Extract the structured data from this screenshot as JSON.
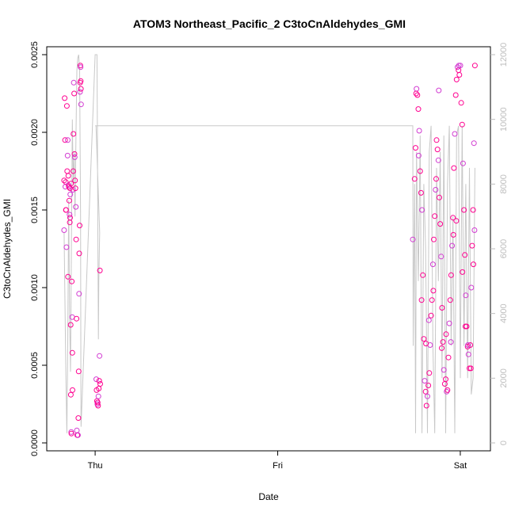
{
  "chart_data": {
    "type": "scatter",
    "title": "ATOM3 Northeast_Pacific_2 C3toCnAldehydes_GMI",
    "xlabel": "Date",
    "ylabel": "C3toCnAldehydes_GMI",
    "x_ticks": [
      {
        "label": "Thu",
        "pos": 0
      },
      {
        "label": "Fri",
        "pos": 1
      },
      {
        "label": "Sat",
        "pos": 2
      }
    ],
    "xlim": [
      -0.2,
      2.1
    ],
    "ylim": [
      0,
      0.0025
    ],
    "y_ticks": [
      {
        "label": "0.0000",
        "value": 0
      },
      {
        "label": "0.0005",
        "value": 0.0005
      },
      {
        "label": "0.0010",
        "value": 0.001
      },
      {
        "label": "0.0015",
        "value": 0.0015
      },
      {
        "label": "0.0020",
        "value": 0.002
      },
      {
        "label": "0.0025",
        "value": 0.0025
      }
    ],
    "y2lim": [
      0,
      12000
    ],
    "y2_ticks": [
      {
        "label": "0",
        "value": 0
      },
      {
        "label": "2000",
        "value": 2000
      },
      {
        "label": "4000",
        "value": 4000
      },
      {
        "label": "6000",
        "value": 6000
      },
      {
        "label": "8000",
        "value": 8000
      },
      {
        "label": "10000",
        "value": 10000
      },
      {
        "label": "12000",
        "value": 12000
      }
    ],
    "colors": {
      "points": "#ff0090",
      "points_alt": "#d23cd2",
      "altitude_line": "#c8c8c8",
      "right_axis": "#bdbdbd"
    },
    "grid": false,
    "series": [
      {
        "values": [
          [
            -0.17,
            0.00137
          ],
          [
            -0.167,
            0.00222
          ],
          [
            -0.165,
            0.00195
          ],
          [
            -0.163,
            0.00165
          ],
          [
            -0.161,
            0.00168
          ],
          [
            -0.159,
            0.0015
          ],
          [
            -0.157,
            0.00126
          ],
          [
            -0.155,
            0.00217
          ],
          [
            -0.153,
            0.00175
          ],
          [
            -0.151,
            0.00185
          ],
          [
            -0.149,
            0.00107
          ],
          [
            -0.147,
            0.00172
          ],
          [
            -0.146,
            0.00166
          ],
          [
            -0.144,
            0.00165
          ],
          [
            -0.142,
            0.00156
          ],
          [
            -0.14,
            0.00147
          ],
          [
            -0.139,
            0.00142
          ],
          [
            -0.137,
            0.00145
          ],
          [
            -0.136,
            0.0016
          ],
          [
            -0.134,
            0.00076
          ],
          [
            -0.133,
            0.00031
          ],
          [
            -0.131,
            7e-05
          ],
          [
            -0.13,
            6e-05
          ],
          [
            -0.128,
            0.00104
          ],
          [
            -0.126,
            0.00081
          ],
          [
            -0.125,
            0.00058
          ],
          [
            -0.124,
            0.00034
          ],
          [
            -0.122,
            0.00163
          ],
          [
            -0.12,
            0.00175
          ],
          [
            -0.119,
            0.00199
          ],
          [
            -0.117,
            0.00232
          ],
          [
            -0.115,
            0.00225
          ],
          [
            -0.113,
            0.00186
          ],
          [
            -0.112,
            0.00184
          ],
          [
            -0.11,
            0.00169
          ],
          [
            -0.108,
            0.00164
          ],
          [
            -0.106,
            0.00152
          ],
          [
            -0.104,
            0.00131
          ],
          [
            -0.102,
            0.0008
          ],
          [
            -0.1,
            8e-05
          ],
          [
            -0.098,
            5e-05
          ],
          [
            -0.096,
            5e-05
          ],
          [
            -0.094,
            5e-05
          ],
          [
            -0.092,
            0.00016
          ],
          [
            -0.09,
            0.00046
          ],
          [
            -0.088,
            0.00096
          ],
          [
            -0.087,
            0.00122
          ],
          [
            -0.085,
            0.0014
          ],
          [
            -0.083,
            0.00226
          ],
          [
            -0.082,
            0.00232
          ],
          [
            -0.081,
            0.00243
          ],
          [
            -0.08,
            0.00242
          ],
          [
            -0.079,
            0.00233
          ],
          [
            -0.078,
            0.00228
          ],
          [
            -0.077,
            0.00218
          ],
          [
            -0.17,
            0.00169
          ],
          [
            -0.16,
            0.0015
          ],
          [
            -0.15,
            0.00195
          ],
          [
            -0.138,
            0.00164
          ],
          [
            -0.132,
            0.00167
          ],
          [
            0.006,
            0.00041
          ],
          [
            0.008,
            0.00034
          ],
          [
            0.01,
            0.00027
          ],
          [
            0.012,
            0.00025
          ],
          [
            0.014,
            0.00026
          ],
          [
            0.016,
            0.00024
          ],
          [
            0.018,
            0.0003
          ],
          [
            0.02,
            0.00035
          ],
          [
            0.022,
            0.0004
          ],
          [
            0.024,
            0.00056
          ],
          [
            0.026,
            0.00111
          ],
          [
            0.028,
            0.00038
          ],
          [
            1.74,
            0.00131
          ],
          [
            1.75,
            0.0017
          ],
          [
            1.755,
            0.0019
          ],
          [
            1.76,
            0.00228
          ],
          [
            1.765,
            0.00224
          ],
          [
            1.77,
            0.00215
          ],
          [
            1.775,
            0.00201
          ],
          [
            1.78,
            0.00175
          ],
          [
            1.785,
            0.00161
          ],
          [
            1.79,
            0.0015
          ],
          [
            1.795,
            0.00108
          ],
          [
            1.8,
            0.00067
          ],
          [
            1.805,
            0.0004
          ],
          [
            1.81,
            0.00033
          ],
          [
            1.815,
            0.00024
          ],
          [
            1.82,
            0.0003
          ],
          [
            1.825,
            0.00037
          ],
          [
            1.83,
            0.00045
          ],
          [
            1.835,
            0.00063
          ],
          [
            1.84,
            0.00082
          ],
          [
            1.845,
            0.00092
          ],
          [
            1.85,
            0.00115
          ],
          [
            1.855,
            0.00131
          ],
          [
            1.86,
            0.00146
          ],
          [
            1.865,
            0.00163
          ],
          [
            1.87,
            0.00195
          ],
          [
            1.875,
            0.00189
          ],
          [
            1.88,
            0.00182
          ],
          [
            1.885,
            0.00158
          ],
          [
            1.89,
            0.00141
          ],
          [
            1.895,
            0.0012
          ],
          [
            1.9,
            0.00087
          ],
          [
            1.905,
            0.00065
          ],
          [
            1.91,
            0.00047
          ],
          [
            1.915,
            0.00038
          ],
          [
            1.92,
            0.00041
          ],
          [
            1.925,
            0.00033
          ],
          [
            1.93,
            0.00034
          ],
          [
            1.935,
            0.00055
          ],
          [
            1.94,
            0.00077
          ],
          [
            1.945,
            0.00092
          ],
          [
            1.95,
            0.00108
          ],
          [
            1.955,
            0.00127
          ],
          [
            1.96,
            0.00145
          ],
          [
            1.965,
            0.00177
          ],
          [
            1.97,
            0.00199
          ],
          [
            1.975,
            0.00224
          ],
          [
            1.98,
            0.00234
          ],
          [
            1.985,
            0.00242
          ],
          [
            1.99,
            0.0024
          ],
          [
            1.995,
            0.00237
          ],
          [
            2.0,
            0.00243
          ],
          [
            2.005,
            0.00219
          ],
          [
            2.01,
            0.00205
          ],
          [
            2.015,
            0.0018
          ],
          [
            2.02,
            0.0015
          ],
          [
            2.025,
            0.00121
          ],
          [
            2.03,
            0.00095
          ],
          [
            2.035,
            0.00075
          ],
          [
            2.04,
            0.00062
          ],
          [
            2.045,
            0.00057
          ],
          [
            2.05,
            0.00048
          ],
          [
            2.055,
            0.00063
          ],
          [
            2.06,
            0.001
          ],
          [
            2.065,
            0.00127
          ],
          [
            2.07,
            0.0015
          ],
          [
            2.075,
            0.00193
          ],
          [
            2.08,
            0.00243
          ],
          [
            1.758,
            0.00225
          ],
          [
            1.772,
            0.00185
          ],
          [
            1.788,
            0.00092
          ],
          [
            1.812,
            0.00064
          ],
          [
            1.828,
            0.00079
          ],
          [
            1.852,
            0.00098
          ],
          [
            1.868,
            0.0017
          ],
          [
            1.882,
            0.00227
          ],
          [
            1.898,
            0.00061
          ],
          [
            1.922,
            0.0007
          ],
          [
            1.948,
            0.00065
          ],
          [
            1.962,
            0.00134
          ],
          [
            1.978,
            0.00143
          ],
          [
            1.992,
            0.00243
          ],
          [
            2.012,
            0.0011
          ],
          [
            2.028,
            0.00075
          ],
          [
            2.042,
            0.00063
          ],
          [
            2.058,
            0.00048
          ],
          [
            2.072,
            0.00115
          ],
          [
            2.078,
            0.00137
          ]
        ]
      }
    ],
    "altitude_line": [
      [
        -0.17,
        6500
      ],
      [
        -0.16,
        2000
      ],
      [
        -0.155,
        300
      ],
      [
        -0.15,
        3000
      ],
      [
        -0.145,
        7500
      ],
      [
        -0.14,
        4000
      ],
      [
        -0.135,
        2200
      ],
      [
        -0.13,
        6000
      ],
      [
        -0.125,
        10000
      ],
      [
        -0.12,
        8000
      ],
      [
        -0.115,
        9000
      ],
      [
        -0.11,
        7000
      ],
      [
        -0.105,
        9500
      ],
      [
        -0.1,
        11500
      ],
      [
        -0.095,
        11900
      ],
      [
        -0.09,
        12000
      ],
      [
        -0.085,
        11500
      ],
      [
        -0.08,
        7000
      ],
      [
        -0.078,
        1800
      ],
      [
        -0.077,
        500
      ],
      [
        0.0,
        12000
      ],
      [
        0.01,
        12000
      ],
      [
        0.012,
        9800
      ],
      [
        0.015,
        6500
      ],
      [
        0.018,
        3200
      ],
      [
        0.02,
        5000
      ],
      [
        0.025,
        6500
      ],
      [
        0.005,
        9800
      ],
      [
        0.0,
        9800
      ],
      [
        1.74,
        9800
      ],
      [
        1.742,
        3000
      ],
      [
        1.75,
        8000
      ],
      [
        1.755,
        300
      ],
      [
        1.76,
        9000
      ],
      [
        1.77,
        5000
      ],
      [
        1.78,
        9500
      ],
      [
        1.79,
        300
      ],
      [
        1.8,
        8000
      ],
      [
        1.81,
        6000
      ],
      [
        1.82,
        300
      ],
      [
        1.83,
        9000
      ],
      [
        1.84,
        9800
      ],
      [
        1.85,
        3000
      ],
      [
        1.86,
        300
      ],
      [
        1.87,
        8500
      ],
      [
        1.88,
        5000
      ],
      [
        1.89,
        9000
      ],
      [
        1.9,
        2000
      ],
      [
        1.91,
        9500
      ],
      [
        1.92,
        300
      ],
      [
        1.93,
        8000
      ],
      [
        1.94,
        9800
      ],
      [
        1.95,
        3000
      ],
      [
        1.96,
        7000
      ],
      [
        1.97,
        300
      ],
      [
        1.98,
        9500
      ],
      [
        1.99,
        9800
      ],
      [
        2.0,
        2000
      ],
      [
        2.01,
        9800
      ],
      [
        2.02,
        3000
      ],
      [
        2.03,
        8000
      ],
      [
        2.04,
        2000
      ],
      [
        2.05,
        8500
      ],
      [
        2.06,
        1500
      ],
      [
        2.07,
        2000
      ],
      [
        2.08,
        8500
      ]
    ]
  }
}
